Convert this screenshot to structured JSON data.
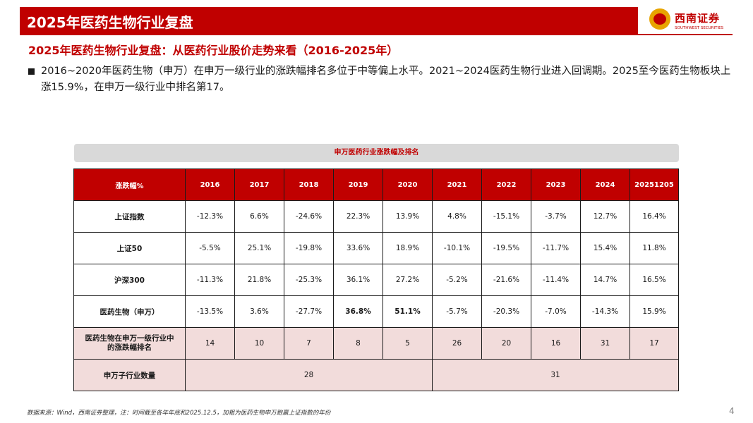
{
  "header": {
    "title": "2025年医药生物行业复盘",
    "logo_cn": "西南证券",
    "logo_en": "SOUTHWEST SECURITIES"
  },
  "subtitle": "2025年医药生物行业复盘：从医药行业股价走势来看（2016-2025年）",
  "bullet": "2016~2020年医药生物（申万）在申万一级行业的涨跌幅排名多位于中等偏上水平。2021~2024医药生物行业进入回调期。2025至今医药生物板块上涨15.9%，在申万一级行业中排名第17。",
  "table": {
    "title": "申万医药行业涨跌幅及排名",
    "header": [
      "涨跌幅%",
      "2016",
      "2017",
      "2018",
      "2019",
      "2020",
      "2021",
      "2022",
      "2023",
      "2024",
      "20251205"
    ],
    "rows": [
      {
        "label": "上证指数",
        "values": [
          "-12.3%",
          "6.6%",
          "-24.6%",
          "22.3%",
          "13.9%",
          "4.8%",
          "-15.1%",
          "-3.7%",
          "12.7%",
          "16.4%"
        ]
      },
      {
        "label": "上证50",
        "values": [
          "-5.5%",
          "25.1%",
          "-19.8%",
          "33.6%",
          "18.9%",
          "-10.1%",
          "-19.5%",
          "-11.7%",
          "15.4%",
          "11.8%"
        ]
      },
      {
        "label": "沪深300",
        "values": [
          "-11.3%",
          "21.8%",
          "-25.3%",
          "36.1%",
          "27.2%",
          "-5.2%",
          "-21.6%",
          "-11.4%",
          "14.7%",
          "16.5%"
        ]
      },
      {
        "label": "医药生物（申万）",
        "values": [
          "-13.5%",
          "3.6%",
          "-27.7%",
          "36.8%",
          "51.1%",
          "-5.7%",
          "-20.3%",
          "-7.0%",
          "-14.3%",
          "15.9%"
        ]
      }
    ],
    "rank_row": {
      "label_line1": "医药生物在申万一级行业中",
      "label_line2": "的涨跌幅排名",
      "values": [
        "14",
        "10",
        "7",
        "8",
        "5",
        "26",
        "20",
        "16",
        "31",
        "17"
      ]
    },
    "count_row": {
      "label": "申万子行业数量",
      "value_2016_2020": "28",
      "value_2021_2025": "31"
    }
  },
  "footer_note": "数据来源：Wind，西南证券整理，注：时间截至各年年底和2025.12.5，加粗为医药生物申万跑赢上证指数的年份",
  "page_number": "4",
  "colors": {
    "brand_red": "#c00000",
    "pink_row": "#f2dcdb",
    "title_gray": "#d9d9d9",
    "logo_gold": "#e8a400"
  }
}
